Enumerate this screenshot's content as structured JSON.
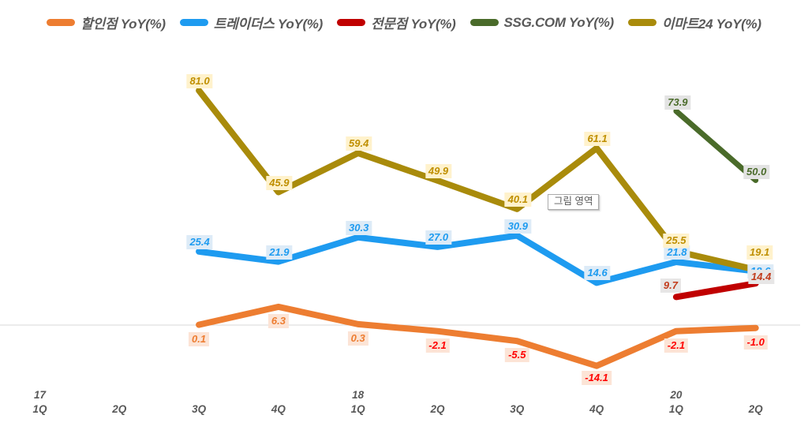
{
  "legend": {
    "items": [
      {
        "label": "할인점 YoY(%)",
        "color": "#ED7D31"
      },
      {
        "label": "트레이더스 YoY(%)",
        "color": "#1E9BF0"
      },
      {
        "label": "전문점 YoY(%)",
        "color": "#C00000"
      },
      {
        "label": "SSG.COM YoY(%)",
        "color": "#4A6B2A"
      },
      {
        "label": "이마트24 YoY(%)",
        "color": "#A98B0B"
      }
    ]
  },
  "plot_area_tooltip": "그림 영역",
  "chart_data": {
    "type": "line",
    "title": "",
    "legend_position": "top",
    "grid": "zero-line-only",
    "baseline_value": 0,
    "zero_line_color": "#D9D9D9",
    "axis_text_color": "#595959",
    "categories": [
      {
        "year": "17",
        "label": "1Q"
      },
      {
        "year": "",
        "label": "2Q"
      },
      {
        "year": "",
        "label": "3Q"
      },
      {
        "year": "",
        "label": "4Q"
      },
      {
        "year": "18",
        "label": "1Q"
      },
      {
        "year": "",
        "label": "2Q"
      },
      {
        "year": "",
        "label": "3Q"
      },
      {
        "year": "",
        "label": "4Q"
      },
      {
        "year": "20",
        "label": "1Q"
      },
      {
        "year": "",
        "label": "2Q"
      }
    ],
    "series": [
      {
        "name": "할인점 YoY(%)",
        "color": "#ED7D31",
        "label_bg": "#FCE4D6",
        "label_color": "#ED7D31",
        "negative_label_color": "#FF0000",
        "values": [
          null,
          null,
          0.1,
          6.3,
          0.3,
          -2.1,
          -5.5,
          -14.1,
          -2.1,
          -1.0
        ]
      },
      {
        "name": "트레이더스 YoY(%)",
        "color": "#1E9BF0",
        "label_bg": "#DDEBF7",
        "label_color": "#1E9BF0",
        "values": [
          null,
          null,
          25.4,
          21.9,
          30.3,
          27.0,
          30.9,
          14.6,
          21.8,
          18.6
        ]
      },
      {
        "name": "전문점 YoY(%)",
        "color": "#C00000",
        "label_bg": "#E7E6E6",
        "label_color": "#C23C1C",
        "values": [
          null,
          null,
          null,
          null,
          null,
          null,
          null,
          null,
          9.7,
          14.4
        ]
      },
      {
        "name": "SSG.COM YoY(%)",
        "color": "#4A6B2A",
        "label_bg": "#E3E3E3",
        "label_color": "#4A6B2A",
        "values": [
          null,
          null,
          null,
          null,
          null,
          null,
          null,
          null,
          73.9,
          50.0
        ]
      },
      {
        "name": "이마트24 YoY(%)",
        "color": "#A98B0B",
        "label_bg": "#FFF2CC",
        "label_color": "#BF8F00",
        "values": [
          null,
          null,
          81.0,
          45.9,
          59.4,
          49.9,
          40.1,
          61.1,
          25.5,
          19.1
        ]
      }
    ]
  }
}
